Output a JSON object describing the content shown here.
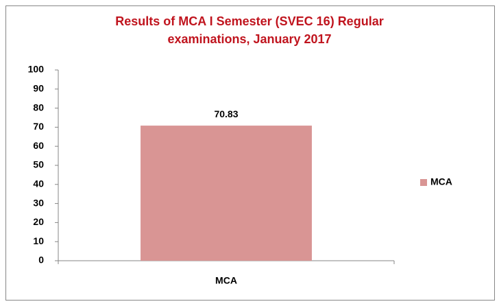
{
  "chart_data": {
    "type": "bar",
    "title": [
      "Results of MCA I Semester (SVEC 16) Regular",
      "examinations,  January 2017"
    ],
    "categories": [
      "MCA"
    ],
    "series": [
      {
        "name": "MCA",
        "color": "#d99594",
        "values": [
          70.83
        ]
      }
    ],
    "ylim": [
      0,
      100
    ],
    "yticks": [
      0,
      10,
      20,
      30,
      40,
      50,
      60,
      70,
      80,
      90,
      100
    ],
    "grid": false,
    "legend": "right",
    "data_labels": true
  }
}
